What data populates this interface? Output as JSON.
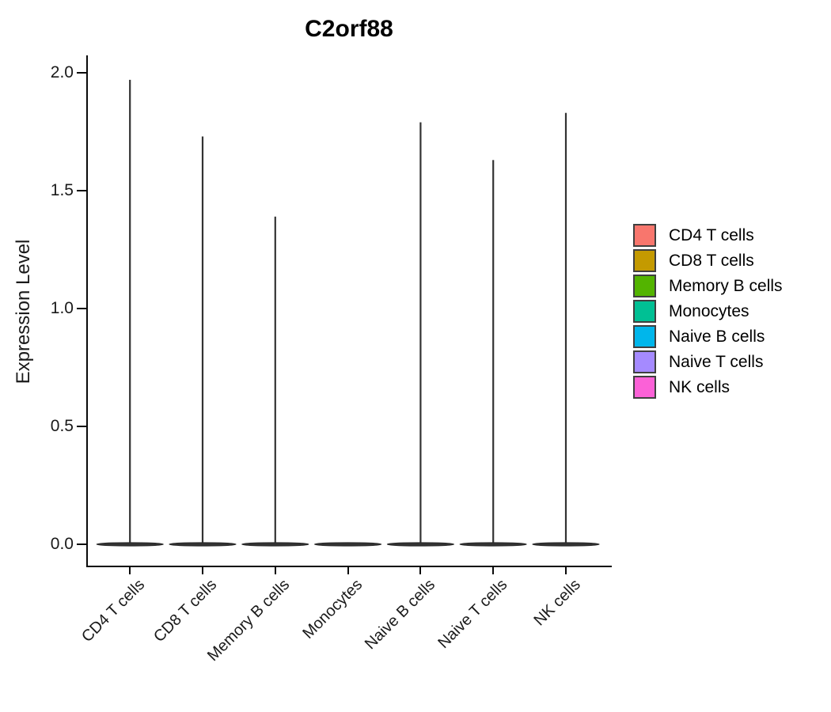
{
  "title": "C2orf88",
  "y_axis": {
    "label": "Expression Level",
    "tick_labels": [
      "0.0",
      "0.5",
      "1.0",
      "1.5",
      "2.0"
    ],
    "tick_values": [
      0,
      0.5,
      1,
      1.5,
      2
    ]
  },
  "x_axis": {
    "categories": [
      "CD4 T cells",
      "CD8 T cells",
      "Memory B cells",
      "Monocytes",
      "Naive B cells",
      "Naive T cells",
      "NK cells"
    ]
  },
  "legend": {
    "position": "right"
  },
  "chart_data": {
    "type": "violin",
    "title": "C2orf88",
    "xlabel": "",
    "ylabel": "Expression Level",
    "ylim": [
      0,
      2.07
    ],
    "yticks": [
      0.0,
      0.5,
      1.0,
      1.5,
      2.0
    ],
    "grid": false,
    "legend_position": "right",
    "shape_note": "each violin is fully collapsed at expression 0 (wide flat base) with a thin vertical spike reaching its maximum value; Monocytes has no spike",
    "violin_outline_color": "#333333",
    "groups": [
      {
        "label": "CD4 T cells",
        "color": "#F8766D",
        "max": 1.97
      },
      {
        "label": "CD8 T cells",
        "color": "#C49A00",
        "max": 1.73
      },
      {
        "label": "Memory B cells",
        "color": "#53B400",
        "max": 1.39
      },
      {
        "label": "Monocytes",
        "color": "#00C094",
        "max": 0.0
      },
      {
        "label": "Naive B cells",
        "color": "#00B6EB",
        "max": 1.79
      },
      {
        "label": "Naive T cells",
        "color": "#A58AFF",
        "max": 1.63
      },
      {
        "label": "NK cells",
        "color": "#FB61D7",
        "max": 1.83
      }
    ]
  }
}
